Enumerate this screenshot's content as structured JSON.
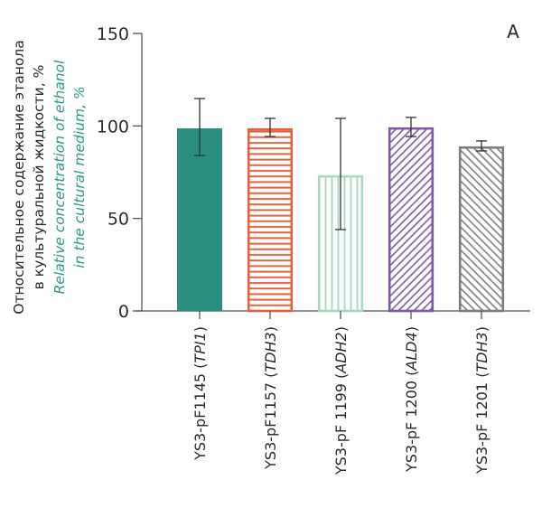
{
  "chart_data": {
    "type": "bar",
    "panel_label": "A",
    "title": "",
    "ylabel_ru_line1": "Относительное содержание этанола",
    "ylabel_ru_line2": "в культуральной жидкости, %",
    "ylabel_en_line1": "Relative concentration of ethanol",
    "ylabel_en_line2": "in the cultural medium, %",
    "xlabel": "",
    "ylim": [
      0,
      150
    ],
    "yticks": [
      0,
      50,
      100,
      150
    ],
    "grid": false,
    "categories": [
      {
        "strain": "YS3-pF1145",
        "gene": "TPI1"
      },
      {
        "strain": "YS3-pF1157",
        "gene": "TDH3"
      },
      {
        "strain": "YS3-pF 1199",
        "gene": "ADH2"
      },
      {
        "strain": "YS3-pF 1200",
        "gene": "ALD4"
      },
      {
        "strain": "YS3-pF 1201",
        "gene": "TDH3"
      }
    ],
    "values": [
      98.7,
      98.7,
      73.3,
      99.2,
      88.9
    ],
    "error_upper": [
      114.8,
      104.1,
      104.1,
      104.6,
      91.9
    ],
    "error_lower": [
      84.0,
      94.3,
      44.0,
      94.3,
      86.5
    ],
    "bar_styles": [
      {
        "pattern": "solid",
        "color": "#2a8f7f"
      },
      {
        "pattern": "horizontal",
        "color": "#e2623e"
      },
      {
        "pattern": "vertical",
        "color": "#a8d8c0"
      },
      {
        "pattern": "diagonal-right",
        "color": "#7a5aa6"
      },
      {
        "pattern": "diagonal-left",
        "color": "#7d7d7d"
      }
    ]
  }
}
